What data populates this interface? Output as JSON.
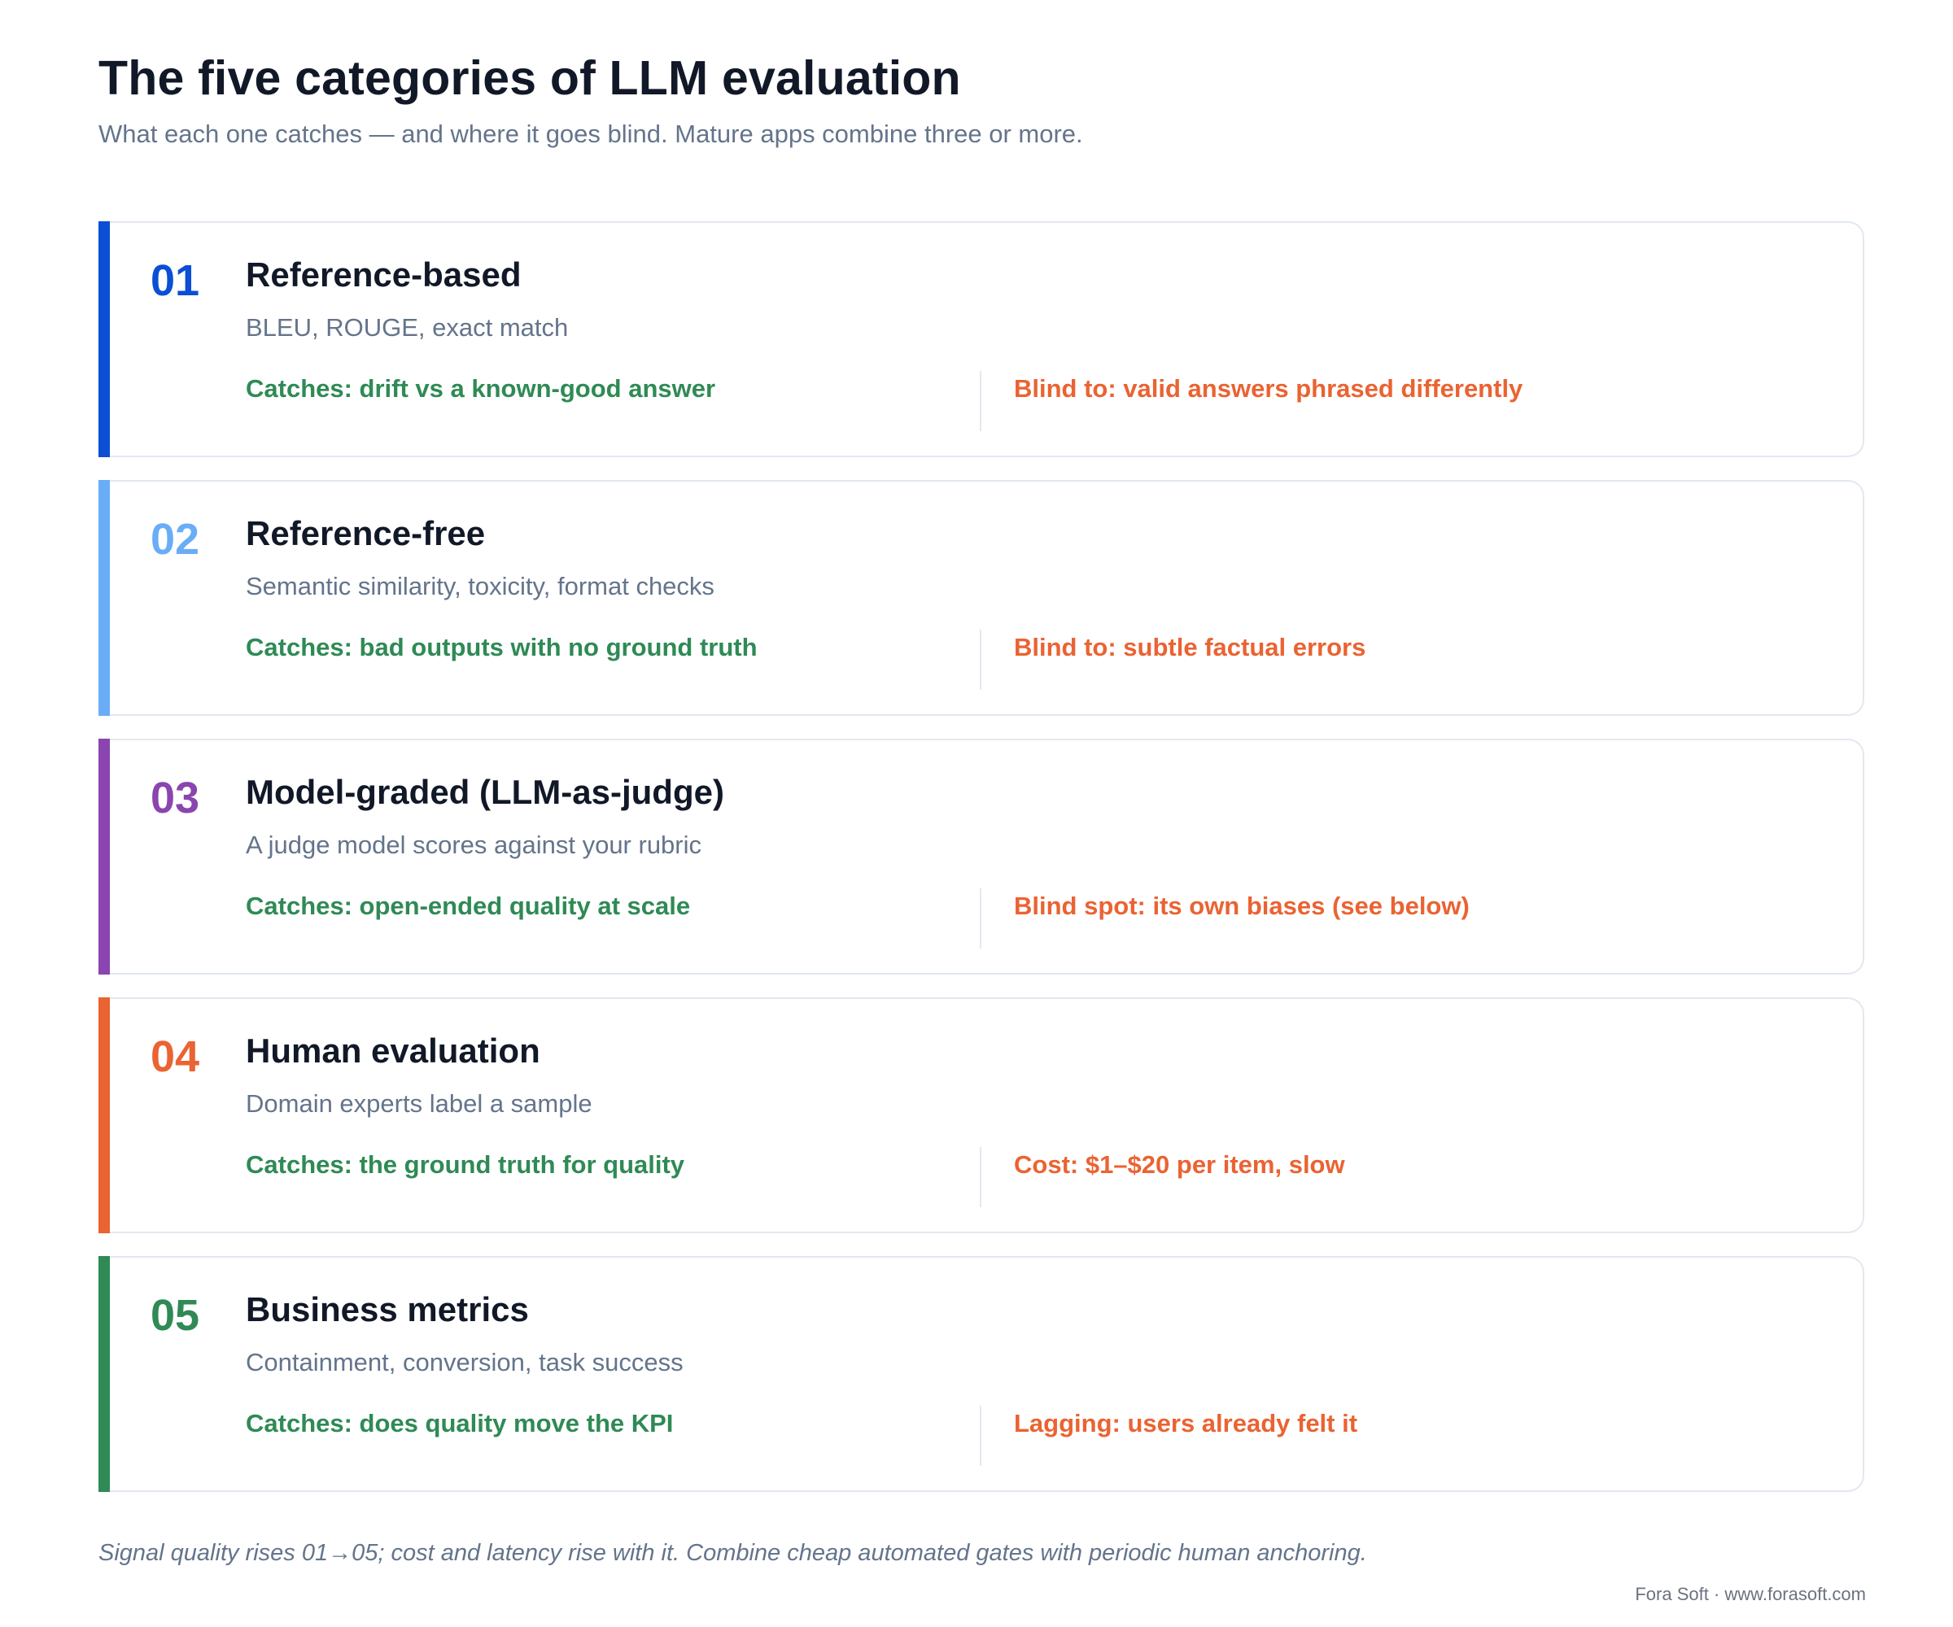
{
  "header": {
    "title": "The five categories of LLM evaluation",
    "subtitle": "What each one catches — and where it goes blind. Mature apps combine three or more."
  },
  "categories": [
    {
      "number": "01",
      "name": "Reference-based",
      "description": "BLEU, ROUGE, exact match",
      "catches": "Catches: drift vs a known-good answer",
      "limitation": "Blind to: valid answers phrased differently",
      "accent_color": "#0b4fd4"
    },
    {
      "number": "02",
      "name": "Reference-free",
      "description": "Semantic similarity, toxicity, format checks",
      "catches": "Catches: bad outputs with no ground truth",
      "limitation": "Blind to: subtle factual errors",
      "accent_color": "#6aadf7"
    },
    {
      "number": "03",
      "name": "Model-graded (LLM-as-judge)",
      "description": "A judge model scores against your rubric",
      "catches": "Catches: open-ended quality at scale",
      "limitation": "Blind spot: its own biases (see below)",
      "accent_color": "#8a45b0"
    },
    {
      "number": "04",
      "name": "Human evaluation",
      "description": "Domain experts label a sample",
      "catches": "Catches: the ground truth for quality",
      "limitation": "Cost: $1–$20 per item, slow",
      "accent_color": "#ea6332"
    },
    {
      "number": "05",
      "name": "Business metrics",
      "description": "Containment, conversion, task success",
      "catches": "Catches: does quality move the KPI",
      "limitation": "Lagging: users already felt it",
      "accent_color": "#2f8a55"
    }
  ],
  "footer": {
    "note": "Signal quality rises 01→05; cost and latency rise with it. Combine cheap automated gates with periodic human anchoring.",
    "credit": "Fora Soft · www.forasoft.com"
  },
  "colors": {
    "catches_text": "#2f8a55",
    "limitation_text": "#ea6332",
    "card_border": "#e2e8f0"
  }
}
